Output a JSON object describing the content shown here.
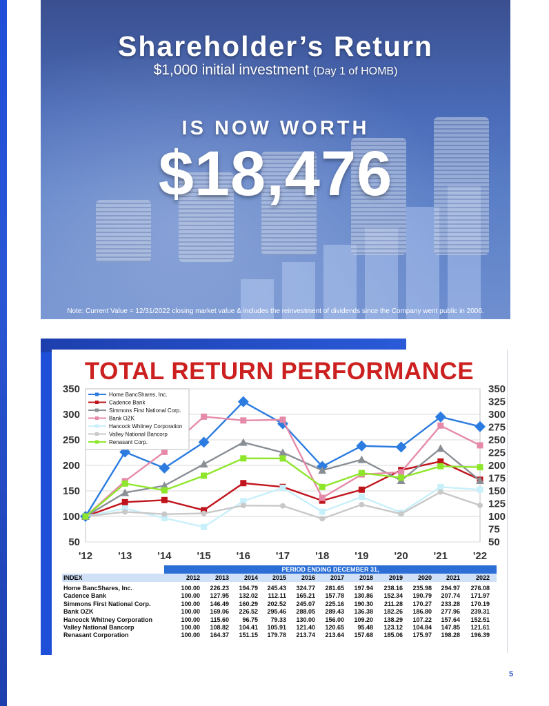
{
  "hero": {
    "title": "Shareholder’s Return",
    "subtitle_main": "$1,000 initial investment",
    "subtitle_small": "(Day 1 of HOMB)",
    "worth_label": "IS NOW WORTH",
    "amount": "$18,476",
    "note": "Note: Current Value = 12/31/2022 closing market value & includes the reinvestment of dividends since the Company went public in 2006."
  },
  "performance": {
    "title": "TOTAL RETURN PERFORMANCE"
  },
  "chart_data": {
    "type": "line",
    "title": "TOTAL RETURN PERFORMANCE",
    "x": [
      "'12",
      "'13",
      "'14",
      "'15",
      "'16",
      "'17",
      "'18",
      "'19",
      "'20",
      "'21",
      "'22"
    ],
    "left_ticks": [
      "350",
      "300",
      "250",
      "200",
      "150",
      "100",
      "50"
    ],
    "right_ticks": [
      "350",
      "325",
      "300",
      "275",
      "250",
      "225",
      "200",
      "175",
      "150",
      "125",
      "100",
      "75",
      "50"
    ],
    "ylim": [
      50,
      350
    ],
    "legend_position": "top-left",
    "series": [
      {
        "name": "Home BancShares, Inc.",
        "color": "#2b7be0",
        "values": [
          100.0,
          226.23,
          194.79,
          245.43,
          324.77,
          281.65,
          197.94,
          238.16,
          235.98,
          294.97,
          276.08
        ]
      },
      {
        "name": "Cadence Bank",
        "color": "#c0141c",
        "values": [
          100.0,
          127.95,
          132.02,
          112.11,
          165.21,
          157.78,
          130.86,
          152.34,
          190.79,
          207.74,
          171.97
        ]
      },
      {
        "name": "Simmons First National Corp.",
        "color": "#8a8f96",
        "values": [
          100.0,
          146.49,
          160.29,
          202.52,
          245.07,
          225.16,
          190.3,
          211.28,
          170.27,
          233.28,
          170.19
        ]
      },
      {
        "name": "Bank OZK",
        "color": "#e58aa8",
        "values": [
          100.0,
          169.06,
          226.52,
          295.46,
          288.05,
          289.43,
          136.38,
          182.26,
          186.8,
          277.96,
          239.31
        ]
      },
      {
        "name": "Hancock Whitney Corporation",
        "color": "#c8f0fa",
        "values": [
          100.0,
          115.6,
          96.75,
          79.33,
          130.0,
          156.0,
          109.2,
          138.29,
          107.22,
          157.64,
          152.51
        ]
      },
      {
        "name": "Valley National Bancorp",
        "color": "#c8c8c8",
        "values": [
          100.0,
          108.82,
          104.41,
          105.91,
          121.4,
          120.65,
          95.48,
          123.12,
          104.84,
          147.85,
          121.61
        ]
      },
      {
        "name": "Renasant Corp.",
        "color": "#8ee62a",
        "values": [
          100.0,
          164.37,
          151.15,
          179.78,
          213.74,
          213.64,
          157.68,
          185.06,
          175.97,
          198.28,
          196.39
        ]
      }
    ]
  },
  "table": {
    "period_label": "PERIOD ENDING DECEMBER 31,",
    "index_label": "INDEX",
    "years": [
      "2012",
      "2013",
      "2014",
      "2015",
      "2016",
      "2017",
      "2018",
      "2019",
      "2020",
      "2021",
      "2022"
    ],
    "rows": [
      {
        "name": "Home BancShares, Inc.",
        "values": [
          "100.00",
          "226.23",
          "194.79",
          "245.43",
          "324.77",
          "281.65",
          "197.94",
          "238.16",
          "235.98",
          "294.97",
          "276.08"
        ]
      },
      {
        "name": "Cadence Bank",
        "values": [
          "100.00",
          "127.95",
          "132.02",
          "112.11",
          "165.21",
          "157.78",
          "130.86",
          "152.34",
          "190.79",
          "207.74",
          "171.97"
        ]
      },
      {
        "name": "Simmons First National Corp.",
        "values": [
          "100.00",
          "146.49",
          "160.29",
          "202.52",
          "245.07",
          "225.16",
          "190.30",
          "211.28",
          "170.27",
          "233.28",
          "170.19"
        ]
      },
      {
        "name": "Bank OZK",
        "values": [
          "100.00",
          "169.06",
          "226.52",
          "295.46",
          "288.05",
          "289.43",
          "136.38",
          "182.26",
          "186.80",
          "277.96",
          "239.31"
        ]
      },
      {
        "name": "Hancock Whitney Corporation",
        "values": [
          "100.00",
          "115.60",
          "96.75",
          "79.33",
          "130.00",
          "156.00",
          "109.20",
          "138.29",
          "107.22",
          "157.64",
          "152.51"
        ]
      },
      {
        "name": "Valley National Bancorp",
        "values": [
          "100.00",
          "108.82",
          "104.41",
          "105.91",
          "121.40",
          "120.65",
          "95.48",
          "123.12",
          "104.84",
          "147.85",
          "121.61"
        ]
      },
      {
        "name": "Renasant Corporation",
        "values": [
          "100.00",
          "164.37",
          "151.15",
          "179.78",
          "213.74",
          "213.64",
          "157.68",
          "185.06",
          "175.97",
          "198.28",
          "196.39"
        ]
      }
    ]
  },
  "page_number": "5"
}
